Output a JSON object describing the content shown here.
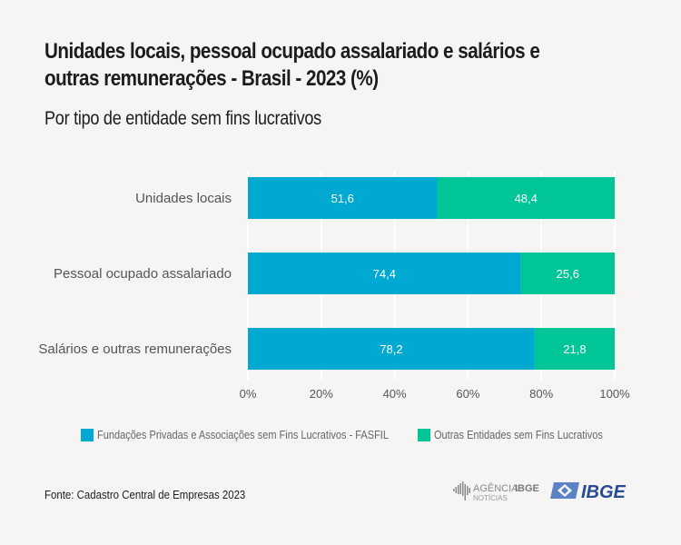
{
  "header": {
    "title_line1": "Unidades locais, pessoal ocupado assalariado e salários e",
    "title_line2": "outras remunerações - Brasil - 2023 (%)",
    "subtitle": "Por tipo de entidade sem fins lucrativos"
  },
  "chart_data": {
    "type": "bar",
    "orientation": "horizontal",
    "stacked": true,
    "title": "Unidades locais, pessoal ocupado assalariado e salários e outras remunerações - Brasil - 2023 (%)",
    "subtitle": "Por tipo de entidade sem fins lucrativos",
    "categories": [
      "Unidades locais",
      "Pessoal ocupado assalariado",
      "Salários e outras remunerações"
    ],
    "series": [
      {
        "name": "Fundações Privadas e Associações sem Fins Lucrativos - FASFIL",
        "color": "#00a9d1",
        "values": [
          51.6,
          74.4,
          78.2
        ],
        "labels": [
          "51,6",
          "74,4",
          "78,2"
        ]
      },
      {
        "name": "Outras Entidades sem Fins Lucrativos",
        "color": "#00c596",
        "values": [
          48.4,
          25.6,
          21.8
        ],
        "labels": [
          "48,4",
          "25,6",
          "21,8"
        ]
      }
    ],
    "xlabel": "",
    "ylabel": "",
    "xlim": [
      0,
      100
    ],
    "xticks": [
      0,
      20,
      40,
      60,
      80,
      100
    ],
    "xtick_labels": [
      "0%",
      "20%",
      "40%",
      "60%",
      "80%",
      "100%"
    ],
    "grid": true,
    "legend_position": "bottom"
  },
  "legend": {
    "items": [
      {
        "label": "Fundações Privadas e Associações sem Fins Lucrativos - FASFIL",
        "color": "#00a9d1"
      },
      {
        "label": "Outras Entidades sem Fins Lucrativos",
        "color": "#00c596"
      }
    ]
  },
  "footer": {
    "source": "Fonte:  Cadastro Central de Empresas 2023",
    "logo_agencia_main": "AGÊNCIA",
    "logo_agencia_bold": "IBGE",
    "logo_agencia_sub": "NOTÍCIAS",
    "logo_ibge": "IBGE"
  }
}
